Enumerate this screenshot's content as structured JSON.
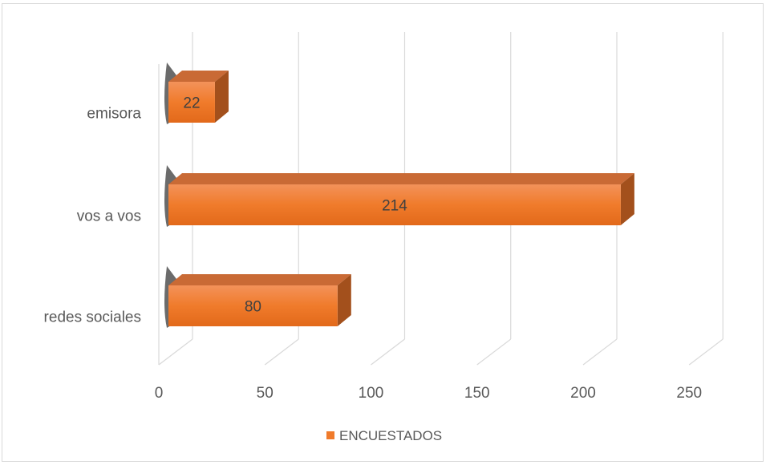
{
  "chart_data": {
    "type": "bar",
    "orientation": "horizontal",
    "categories": [
      "emisora",
      "vos a vos",
      "redes sociales"
    ],
    "series": [
      {
        "name": "ENCUESTADOS",
        "values": [
          22,
          214,
          80
        ]
      }
    ],
    "data_labels": [
      "22",
      "214",
      "80"
    ],
    "x_ticks": [
      "0",
      "50",
      "100",
      "150",
      "200",
      "250"
    ],
    "xlim": [
      0,
      250
    ],
    "grid": true,
    "legend": "bottom",
    "style": "3d",
    "colors": {
      "bar_front": "#f07b2b",
      "bar_top": "#c96a35",
      "bar_side": "#a3501c",
      "grid": "#d9d9d9"
    }
  }
}
